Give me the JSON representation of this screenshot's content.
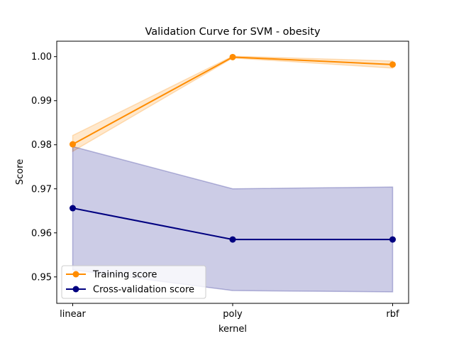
{
  "chart_data": {
    "type": "line",
    "title": "Validation Curve for SVM - obesity",
    "xlabel": "kernel",
    "ylabel": "Score",
    "categories": [
      "linear",
      "poly",
      "rbf"
    ],
    "ylim": [
      0.944,
      1.0035
    ],
    "yticks": [
      0.95,
      0.96,
      0.97,
      0.98,
      0.99,
      1.0
    ],
    "ytick_labels": [
      "0.95",
      "0.96",
      "0.97",
      "0.98",
      "0.99",
      "1.00"
    ],
    "grid": false,
    "legend_position": "lower-left",
    "series": [
      {
        "name": "Training score",
        "color": "#ff8c00",
        "values": [
          0.9801,
          0.9999,
          0.9982
        ],
        "band_lower": [
          0.9785,
          0.9997,
          0.9974
        ],
        "band_upper": [
          0.9821,
          1.0001,
          0.999
        ]
      },
      {
        "name": "Cross-validation score",
        "color": "#000080",
        "values": [
          0.9656,
          0.9585,
          0.9585
        ],
        "band_lower": [
          0.9516,
          0.9469,
          0.9466
        ],
        "band_upper": [
          0.9796,
          0.97,
          0.9704
        ]
      }
    ]
  }
}
